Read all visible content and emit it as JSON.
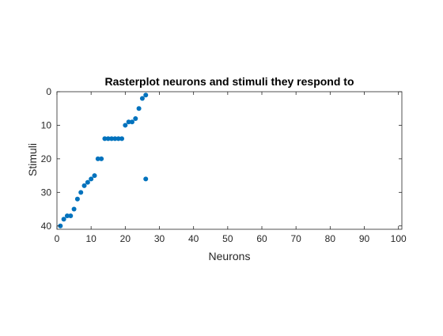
{
  "chart_data": {
    "type": "scatter",
    "title": "Rasterplot neurons and stimuli they respond to",
    "xlabel": "Neurons",
    "ylabel": "Stimuli",
    "xlim": [
      0,
      101
    ],
    "ylim": [
      0,
      41
    ],
    "y_reversed": true,
    "grid": false,
    "xticks": [
      0,
      10,
      20,
      30,
      40,
      50,
      60,
      70,
      80,
      90,
      100
    ],
    "yticks": [
      0,
      10,
      20,
      30,
      40
    ],
    "marker_color": "#0072BD",
    "axis_color": "#262626",
    "points": [
      [
        1,
        40
      ],
      [
        2,
        38
      ],
      [
        3,
        37
      ],
      [
        4,
        37
      ],
      [
        5,
        35
      ],
      [
        6,
        32
      ],
      [
        7,
        30
      ],
      [
        8,
        28
      ],
      [
        9,
        27
      ],
      [
        10,
        26
      ],
      [
        11,
        25
      ],
      [
        12,
        20
      ],
      [
        13,
        20
      ],
      [
        14,
        14
      ],
      [
        15,
        14
      ],
      [
        16,
        14
      ],
      [
        17,
        14
      ],
      [
        18,
        14
      ],
      [
        19,
        14
      ],
      [
        20,
        10
      ],
      [
        21,
        9
      ],
      [
        22,
        9
      ],
      [
        23,
        8
      ],
      [
        24,
        5
      ],
      [
        25,
        2
      ],
      [
        26,
        1
      ],
      [
        26,
        26
      ]
    ]
  }
}
